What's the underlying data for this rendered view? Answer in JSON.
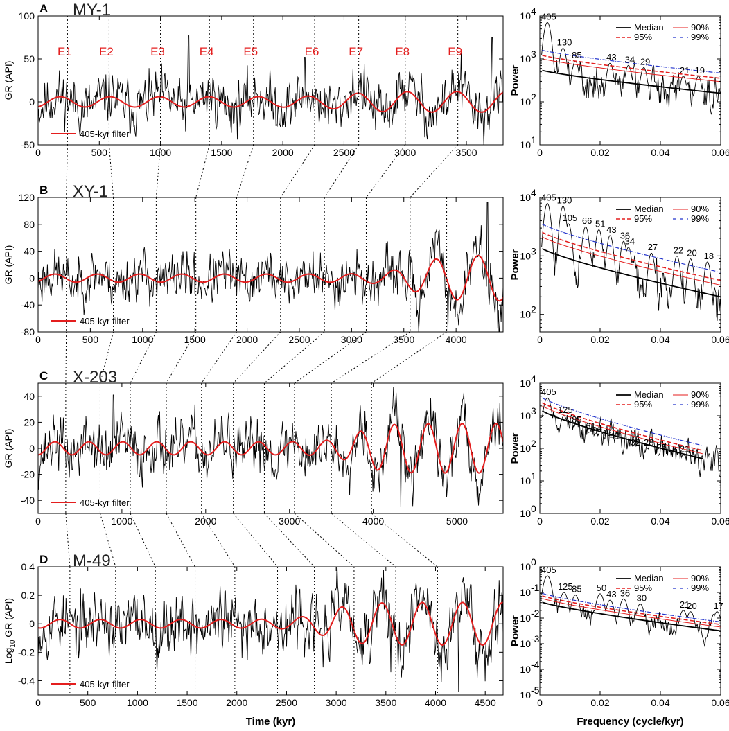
{
  "xlabel_time": "Time (kyr)",
  "xlabel_freq": "Frequency (cycle/kyr)",
  "colors": {
    "signal": "#000000",
    "filter": "#e41e1e",
    "median": "#000000",
    "c90": "#e41e1e",
    "c95": "#e41e1e",
    "c99": "#2233cc"
  },
  "chart_data": [
    {
      "type": "line",
      "panel": "A",
      "well": "MY-1",
      "ylabel": "GR (API)",
      "xlim": [
        0,
        3800
      ],
      "ylim": [
        -50,
        100
      ],
      "xticks": [
        0,
        500,
        1000,
        1500,
        2000,
        2500,
        3000,
        3500
      ],
      "yticks": [
        -50,
        0,
        50,
        100
      ],
      "legend": "405-kyr filter",
      "events": [
        "E1",
        "E2",
        "E3",
        "E4",
        "E5",
        "E6",
        "E7",
        "E8",
        "E9"
      ],
      "event_times": [
        240,
        580,
        1000,
        1400,
        1760,
        2260,
        2620,
        3000,
        3430
      ],
      "filter": {
        "period": 405,
        "phase_ref": 80,
        "base_amp": 6,
        "extra_amp": 6,
        "extra_start": 2500
      },
      "signal": {
        "amp": 14,
        "seed": 11,
        "spikes": [
          [
            1230,
            77
          ],
          [
            3460,
            60
          ],
          [
            2180,
            52
          ],
          [
            3710,
            75
          ]
        ]
      }
    },
    {
      "type": "line",
      "panel": "B",
      "well": "XY-1",
      "ylabel": "GR (API)",
      "xlim": [
        0,
        4450
      ],
      "ylim": [
        -80,
        120
      ],
      "xticks": [
        0,
        500,
        1000,
        1500,
        2000,
        2500,
        3000,
        3500,
        4000
      ],
      "yticks": [
        -80,
        -40,
        0,
        40,
        80,
        120
      ],
      "legend": "405-kyr filter",
      "event_times": [
        270,
        720,
        1130,
        1510,
        1900,
        2320,
        2740,
        3140,
        3560,
        3910
      ],
      "filter": {
        "period": 405,
        "phase_ref": 60,
        "base_amp": 6,
        "extra_amp": 28,
        "extra_start": 3600
      },
      "signal": {
        "amp": 17,
        "seed": 23,
        "spikes": [
          [
            4300,
            113
          ],
          [
            3920,
            -78
          ],
          [
            4400,
            -75
          ]
        ]
      }
    },
    {
      "type": "line",
      "panel": "C",
      "well": "X-203",
      "ylabel": "GR (API)",
      "xlim": [
        0,
        5550
      ],
      "ylim": [
        -50,
        50
      ],
      "xticks": [
        0,
        1000,
        2000,
        3000,
        4000,
        5000
      ],
      "yticks": [
        -40,
        -20,
        0,
        20,
        40
      ],
      "legend": "405-kyr filter",
      "event_times": [
        330,
        740,
        1100,
        1530,
        1950,
        2330,
        2700,
        3060,
        3500,
        3980
      ],
      "filter": {
        "period": 405,
        "phase_ref": 100,
        "base_amp": 5,
        "extra_amp": 14,
        "extra_start": 3800
      },
      "signal": {
        "amp": 10,
        "seed": 37,
        "spikes": [
          [
            900,
            41
          ],
          [
            4330,
            -45
          ],
          [
            4250,
            35
          ]
        ]
      }
    },
    {
      "type": "line",
      "panel": "D",
      "well": "M-49",
      "ylabel": "Log10 GR (API)",
      "xlim": [
        0,
        4680
      ],
      "ylim": [
        -0.5,
        0.4
      ],
      "xticks": [
        0,
        500,
        1000,
        1500,
        2000,
        2500,
        3000,
        3500,
        4000,
        4500
      ],
      "yticks": [
        -0.4,
        -0.2,
        0,
        0.2,
        0.4
      ],
      "yticklabels": [
        "-0.4",
        "-0.2",
        "0",
        "0.2",
        "0.4"
      ],
      "legend": "405-kyr filter",
      "event_times": [
        320,
        780,
        1180,
        1580,
        1980,
        2410,
        2780,
        3180,
        3600,
        4020
      ],
      "filter": {
        "period": 405,
        "phase_ref": 120,
        "base_amp": 0.03,
        "extra_amp": 0.12,
        "extra_start": 2900
      },
      "signal": {
        "amp": 0.1,
        "seed": 53,
        "spikes": [
          [
            4230,
            -0.48
          ],
          [
            3550,
            -0.34
          ]
        ]
      }
    },
    {
      "type": "line",
      "panel": "A-spectrum",
      "ylabel": "Power",
      "xlim": [
        0,
        0.06
      ],
      "ylog": [
        1,
        4
      ],
      "xticks": [
        0,
        0.02,
        0.04,
        0.06
      ],
      "xticklabels": [
        "0",
        "0.02",
        "0.04",
        "0.06"
      ],
      "yticklabels": [
        "10",
        "10",
        "10",
        "10"
      ],
      "ytickexp": [
        "1",
        "2",
        "3",
        "4"
      ],
      "median": [
        2.75,
        2.2
      ],
      "offsets": [
        0.27,
        0.35,
        0.47
      ],
      "curve_end": 0.06,
      "legend": [
        "Median",
        "95%",
        "90%",
        "99%"
      ],
      "peaks": [
        "405",
        "130",
        "85",
        "43",
        "34",
        "29",
        "21",
        "19"
      ],
      "peak_freq": [
        0.0025,
        0.0077,
        0.0118,
        0.0233,
        0.0294,
        0.0345,
        0.0476,
        0.0526
      ],
      "peak_pow": [
        3.85,
        3.25,
        2.95,
        2.9,
        2.85,
        2.8,
        2.6,
        2.6
      ],
      "seed": 71
    },
    {
      "type": "line",
      "panel": "B-spectrum",
      "ylabel": "Power",
      "xlim": [
        0,
        0.06
      ],
      "ylog": [
        1.7,
        4
      ],
      "xticks": [
        0,
        0.02,
        0.04,
        0.06
      ],
      "xticklabels": [
        "0",
        "0.02",
        "0.04",
        "0.06"
      ],
      "yticklabels": [
        "10",
        "10",
        "10"
      ],
      "ytickexp": [
        "2",
        "3",
        "4"
      ],
      "median": [
        3.15,
        2.3
      ],
      "offsets": [
        0.2,
        0.28,
        0.42
      ],
      "curve_end": 0.06,
      "legend": [
        "Median",
        "95%",
        "90%",
        "99%"
      ],
      "peaks": [
        "405",
        "130",
        "105",
        "66",
        "51",
        "43",
        "36",
        "34",
        "27",
        "22",
        "20",
        "18"
      ],
      "peak_freq": [
        0.0025,
        0.0077,
        0.0095,
        0.0152,
        0.0196,
        0.0233,
        0.0278,
        0.0294,
        0.037,
        0.0455,
        0.05,
        0.0556
      ],
      "peak_pow": [
        3.9,
        3.85,
        3.55,
        3.5,
        3.45,
        3.35,
        3.25,
        3.15,
        3.05,
        3.0,
        2.95,
        2.9
      ],
      "seed": 83
    },
    {
      "type": "line",
      "panel": "C-spectrum",
      "ylabel": "Power",
      "xlim": [
        0,
        0.06
      ],
      "ylog": [
        0,
        4
      ],
      "xticks": [
        0,
        0.02,
        0.04,
        0.06
      ],
      "xticklabels": [
        "0",
        "0.02",
        "0.04",
        "0.06"
      ],
      "yticklabels": [
        "10",
        "10",
        "10",
        "10",
        "10"
      ],
      "ytickexp": [
        "0",
        "1",
        "2",
        "3",
        "4"
      ],
      "median": [
        3.2,
        1.55
      ],
      "offsets": [
        0.15,
        0.25,
        0.4
      ],
      "curve_end": 0.054,
      "legend": [
        "Median",
        "95%",
        "90%",
        "99%"
      ],
      "peaks": [
        "405",
        "125",
        "85",
        "61",
        "54",
        "46",
        "41",
        "32",
        "28",
        "25",
        "21"
      ],
      "peak_freq": [
        0.0025,
        0.008,
        0.0118,
        0.0164,
        0.0185,
        0.0217,
        0.0244,
        0.0313,
        0.0357,
        0.04,
        0.0476
      ],
      "peak_pow": [
        3.55,
        3.0,
        2.7,
        2.5,
        2.45,
        2.3,
        2.2,
        2.0,
        2.0,
        1.85,
        1.8
      ],
      "seed": 97
    },
    {
      "type": "line",
      "panel": "D-spectrum",
      "ylabel": "Power",
      "xlim": [
        0,
        0.06
      ],
      "ylog": [
        -5,
        0
      ],
      "xticks": [
        0,
        0.02,
        0.04,
        0.06
      ],
      "xticklabels": [
        "0",
        "0.02",
        "0.04",
        "0.06"
      ],
      "yticklabels": [
        "10",
        "10",
        "10",
        "10",
        "10",
        "10"
      ],
      "ytickexp": [
        "-5",
        "-4",
        "-3",
        "-2",
        "-1",
        "0"
      ],
      "median": [
        -1.35,
        -2.5
      ],
      "offsets": [
        0.15,
        0.25,
        0.35
      ],
      "curve_end": 0.06,
      "legend": [
        "Median",
        "95%",
        "90%",
        "99%"
      ],
      "peaks": [
        "405",
        "125",
        "85",
        "50",
        "43",
        "36",
        "30",
        "21",
        "20",
        "17"
      ],
      "peak_freq": [
        0.0025,
        0.008,
        0.0118,
        0.02,
        0.0233,
        0.0278,
        0.0333,
        0.0476,
        0.05,
        0.0588
      ],
      "peak_pow": [
        -0.35,
        -1.0,
        -1.1,
        -1.05,
        -1.3,
        -1.25,
        -1.45,
        -1.7,
        -1.75,
        -1.75
      ],
      "seed": 109
    }
  ]
}
